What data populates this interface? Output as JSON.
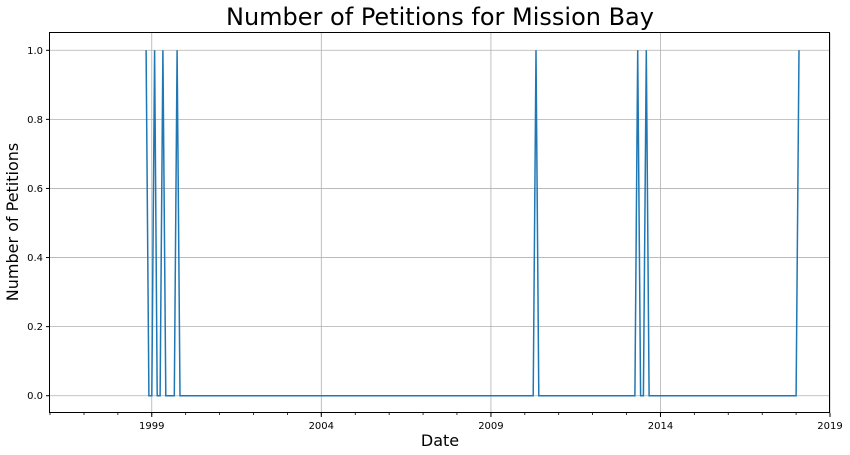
{
  "chart_data": {
    "type": "line",
    "title": "Number of Petitions for Mission Bay",
    "xlabel": "Date",
    "ylabel": "Number of Petitions",
    "xlim": [
      "1996-01-01",
      "2019-01-01"
    ],
    "ylim": [
      -0.05,
      1.05
    ],
    "grid": true,
    "x_ticks": [
      "1999",
      "2004",
      "2009",
      "2014",
      "2019"
    ],
    "y_ticks": [
      "0.0",
      "0.2",
      "0.4",
      "0.6",
      "0.8",
      "1.0"
    ],
    "y_tick_values": [
      0.0,
      0.2,
      0.4,
      0.6,
      0.8,
      1.0
    ],
    "line_color": "#1f77b4",
    "series": [
      {
        "x": [
          "1998-11-01",
          "1998-12-01",
          "1999-01-01",
          "1999-02-01",
          "1999-03-01",
          "1999-04-01",
          "1999-05-01",
          "1999-06-01",
          "1999-07-01",
          "1999-08-01",
          "1999-09-01",
          "1999-10-01",
          "1999-11-01",
          "1999-12-01",
          "2000-01-01",
          "2010-04-01",
          "2010-05-01",
          "2010-06-01",
          "2013-04-01",
          "2013-05-01",
          "2013-06-01",
          "2013-07-01",
          "2013-08-01",
          "2013-09-01",
          "2018-01-01",
          "2018-02-01"
        ],
        "y": [
          1,
          0,
          0,
          1,
          0,
          0,
          1,
          0,
          0,
          0,
          0,
          1,
          0,
          0,
          0,
          0,
          1,
          0,
          0,
          1,
          0,
          0,
          1,
          0,
          0,
          1
        ]
      }
    ]
  }
}
